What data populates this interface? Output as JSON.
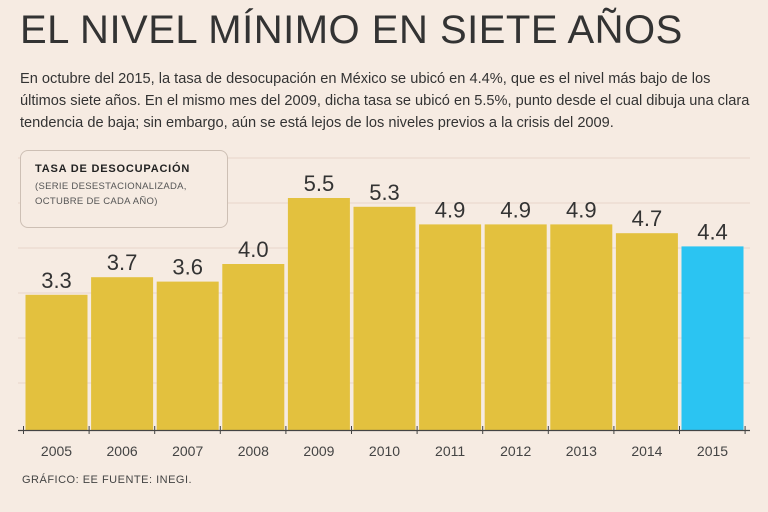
{
  "header": {
    "title": "EL NIVEL MÍNIMO EN SIETE AÑOS",
    "description": "En octubre del 2015, la tasa de desocupación en México se ubicó en 4.4%, que es el nivel más bajo de los últimos siete años. En el mismo mes del 2009, dicha tasa se ubicó en 5.5%, punto desde el cual dibuja una clara tendencia de baja; sin embargo, aún se está lejos de los niveles previos a la crisis del 2009."
  },
  "legend": {
    "title": "TASA DE DESOCUPACIÓN",
    "subtitle_line1": "(SERIE DESESTACIONALIZADA,",
    "subtitle_line2": "OCTUBRE DE CADA AÑO)"
  },
  "footer": {
    "credit": "GRÁFICO: EE  FUENTE: INEGI."
  },
  "colors": {
    "bar": "#e3c13e",
    "highlight": "#2bc4f2",
    "grid": "#e8d6ca",
    "axis": "#444444"
  },
  "chart_data": {
    "type": "bar",
    "title": "TASA DE DESOCUPACIÓN",
    "categories": [
      "2005",
      "2006",
      "2007",
      "2008",
      "2009",
      "2010",
      "2011",
      "2012",
      "2013",
      "2014",
      "2015"
    ],
    "values": [
      3.3,
      3.7,
      3.6,
      4.0,
      5.5,
      5.3,
      4.9,
      4.9,
      4.9,
      4.7,
      4.4
    ],
    "value_labels": [
      "3.3",
      "3.7",
      "3.6",
      "4.0",
      "5.5",
      "5.3",
      "4.9",
      "4.9",
      "4.9",
      "4.7",
      "4.4"
    ],
    "highlight_category": "2015",
    "ylim": [
      0,
      6
    ],
    "grid": true
  }
}
